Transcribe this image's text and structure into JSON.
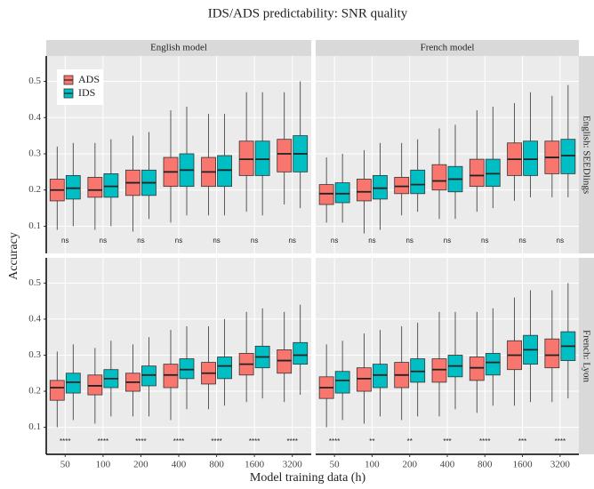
{
  "figure": {
    "title": "IDS/ADS predictability: SNR quality",
    "x_label": "Model training data (h)",
    "y_label": "Accuracy",
    "facet_columns": [
      "English model",
      "French model"
    ],
    "facet_rows": [
      "English: SEEDlings",
      "French: Lyon"
    ],
    "legend": [
      {
        "name": "ADS",
        "color": "#f8766d"
      },
      {
        "name": "IDS",
        "color": "#00bfc4"
      }
    ],
    "categories": [
      "50",
      "100",
      "200",
      "400",
      "800",
      "1600",
      "3200"
    ],
    "ylim": [
      0.025,
      0.57
    ],
    "yticks": [
      0.1,
      0.2,
      0.3,
      0.4,
      0.5
    ]
  },
  "chart_data": [
    {
      "type": "box",
      "series": [
        {
          "min": [
            0.09,
            0.09,
            0.085,
            0.11,
            0.13,
            0.14,
            0.16
          ],
          "q1": [
            0.17,
            0.18,
            0.185,
            0.21,
            0.21,
            0.24,
            0.25
          ],
          "median": [
            0.2,
            0.2,
            0.22,
            0.25,
            0.25,
            0.285,
            0.3
          ],
          "q3": [
            0.23,
            0.235,
            0.255,
            0.29,
            0.29,
            0.335,
            0.34
          ],
          "max": [
            0.32,
            0.33,
            0.35,
            0.42,
            0.41,
            0.47,
            0.47
          ]
        },
        {
          "min": [
            0.1,
            0.1,
            0.12,
            0.13,
            0.13,
            0.13,
            0.15
          ],
          "q1": [
            0.175,
            0.18,
            0.185,
            0.21,
            0.21,
            0.24,
            0.25
          ],
          "median": [
            0.205,
            0.21,
            0.22,
            0.255,
            0.255,
            0.285,
            0.3
          ],
          "q3": [
            0.24,
            0.245,
            0.255,
            0.3,
            0.295,
            0.335,
            0.35
          ],
          "max": [
            0.33,
            0.34,
            0.36,
            0.43,
            0.41,
            0.47,
            0.5
          ]
        }
      ],
      "significance": [
        "ns",
        "ns",
        "ns",
        "ns",
        "ns",
        "ns",
        "ns"
      ]
    },
    {
      "type": "box",
      "series": [
        {
          "min": [
            0.11,
            0.08,
            0.13,
            0.12,
            0.14,
            0.17,
            0.18
          ],
          "q1": [
            0.16,
            0.17,
            0.19,
            0.2,
            0.21,
            0.24,
            0.245
          ],
          "median": [
            0.19,
            0.195,
            0.21,
            0.225,
            0.24,
            0.285,
            0.29
          ],
          "q3": [
            0.215,
            0.23,
            0.235,
            0.27,
            0.285,
            0.33,
            0.335
          ],
          "max": [
            0.29,
            0.31,
            0.33,
            0.37,
            0.42,
            0.44,
            0.46
          ]
        },
        {
          "min": [
            0.11,
            0.09,
            0.14,
            0.12,
            0.15,
            0.18,
            0.18
          ],
          "q1": [
            0.165,
            0.175,
            0.19,
            0.195,
            0.21,
            0.24,
            0.245
          ],
          "median": [
            0.19,
            0.205,
            0.215,
            0.23,
            0.245,
            0.285,
            0.295
          ],
          "q3": [
            0.22,
            0.24,
            0.255,
            0.265,
            0.285,
            0.335,
            0.34
          ],
          "max": [
            0.3,
            0.33,
            0.34,
            0.38,
            0.43,
            0.47,
            0.49
          ]
        }
      ],
      "significance": [
        "ns",
        "ns",
        "ns",
        "ns",
        "ns",
        "ns",
        "ns"
      ]
    },
    {
      "type": "box",
      "series": [
        {
          "min": [
            0.1,
            0.11,
            0.13,
            0.12,
            0.15,
            0.17,
            0.17
          ],
          "q1": [
            0.175,
            0.19,
            0.2,
            0.21,
            0.22,
            0.245,
            0.25
          ],
          "median": [
            0.21,
            0.215,
            0.225,
            0.245,
            0.25,
            0.275,
            0.285
          ],
          "q3": [
            0.23,
            0.245,
            0.25,
            0.275,
            0.28,
            0.305,
            0.315
          ],
          "max": [
            0.31,
            0.32,
            0.33,
            0.37,
            0.38,
            0.42,
            0.42
          ]
        },
        {
          "min": [
            0.12,
            0.13,
            0.13,
            0.15,
            0.16,
            0.18,
            0.19
          ],
          "q1": [
            0.195,
            0.21,
            0.215,
            0.235,
            0.235,
            0.265,
            0.275
          ],
          "median": [
            0.225,
            0.235,
            0.245,
            0.26,
            0.27,
            0.295,
            0.3
          ],
          "q3": [
            0.25,
            0.26,
            0.27,
            0.29,
            0.295,
            0.325,
            0.335
          ],
          "max": [
            0.33,
            0.34,
            0.35,
            0.38,
            0.4,
            0.43,
            0.44
          ]
        }
      ],
      "significance": [
        "****",
        "****",
        "****",
        "****",
        "****",
        "****",
        "****"
      ]
    },
    {
      "type": "box",
      "series": [
        {
          "min": [
            0.1,
            0.11,
            0.12,
            0.13,
            0.14,
            0.16,
            0.17
          ],
          "q1": [
            0.18,
            0.2,
            0.21,
            0.225,
            0.23,
            0.26,
            0.265
          ],
          "median": [
            0.21,
            0.235,
            0.245,
            0.26,
            0.265,
            0.3,
            0.3
          ],
          "q3": [
            0.24,
            0.265,
            0.28,
            0.29,
            0.295,
            0.34,
            0.345
          ],
          "max": [
            0.33,
            0.36,
            0.38,
            0.42,
            0.42,
            0.46,
            0.48
          ]
        },
        {
          "min": [
            0.12,
            0.13,
            0.13,
            0.15,
            0.16,
            0.17,
            0.18
          ],
          "q1": [
            0.195,
            0.21,
            0.225,
            0.24,
            0.245,
            0.275,
            0.285
          ],
          "median": [
            0.23,
            0.245,
            0.255,
            0.27,
            0.28,
            0.315,
            0.325
          ],
          "q3": [
            0.255,
            0.275,
            0.29,
            0.3,
            0.305,
            0.355,
            0.365
          ],
          "max": [
            0.34,
            0.37,
            0.39,
            0.42,
            0.43,
            0.48,
            0.5
          ]
        }
      ],
      "significance": [
        "****",
        "**",
        "**",
        "***",
        "****",
        "***",
        "****"
      ]
    }
  ]
}
